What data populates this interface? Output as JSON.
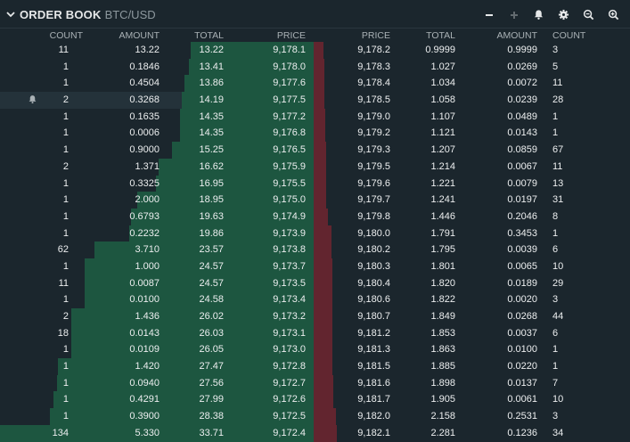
{
  "header": {
    "title": "ORDER BOOK",
    "pair": "BTC/USD",
    "icons": [
      "minus-icon",
      "plus-icon",
      "bell-icon",
      "gear-icon",
      "zoom-out-icon",
      "zoom-in-icon"
    ]
  },
  "columns": {
    "bids": [
      "COUNT",
      "AMOUNT",
      "TOTAL",
      "PRICE"
    ],
    "asks": [
      "PRICE",
      "TOTAL",
      "AMOUNT",
      "COUNT"
    ]
  },
  "colors": {
    "bid_bar": "#1d5640",
    "ask_bar": "#62252f",
    "background": "#1b262d"
  },
  "bid_max_total": 33.71,
  "ask_max_total": 2.281,
  "bids": [
    {
      "count": "11",
      "amount": "13.22",
      "total": "13.22",
      "price": "9,178.1"
    },
    {
      "count": "1",
      "amount": "0.1846",
      "total": "13.41",
      "price": "9,178.0"
    },
    {
      "count": "1",
      "amount": "0.4504",
      "total": "13.86",
      "price": "9,177.6"
    },
    {
      "count": "2",
      "amount": "0.3268",
      "total": "14.19",
      "price": "9,177.5",
      "alert": true
    },
    {
      "count": "1",
      "amount": "0.1635",
      "total": "14.35",
      "price": "9,177.2"
    },
    {
      "count": "1",
      "amount": "0.0006",
      "total": "14.35",
      "price": "9,176.8"
    },
    {
      "count": "1",
      "amount": "0.9000",
      "total": "15.25",
      "price": "9,176.5"
    },
    {
      "count": "2",
      "amount": "1.371",
      "total": "16.62",
      "price": "9,175.9"
    },
    {
      "count": "1",
      "amount": "0.3325",
      "total": "16.95",
      "price": "9,175.5"
    },
    {
      "count": "1",
      "amount": "2.000",
      "total": "18.95",
      "price": "9,175.0"
    },
    {
      "count": "1",
      "amount": "0.6793",
      "total": "19.63",
      "price": "9,174.9"
    },
    {
      "count": "1",
      "amount": "0.2232",
      "total": "19.86",
      "price": "9,173.9"
    },
    {
      "count": "62",
      "amount": "3.710",
      "total": "23.57",
      "price": "9,173.8"
    },
    {
      "count": "1",
      "amount": "1.000",
      "total": "24.57",
      "price": "9,173.7"
    },
    {
      "count": "11",
      "amount": "0.0087",
      "total": "24.57",
      "price": "9,173.5"
    },
    {
      "count": "1",
      "amount": "0.0100",
      "total": "24.58",
      "price": "9,173.4"
    },
    {
      "count": "2",
      "amount": "1.436",
      "total": "26.02",
      "price": "9,173.2"
    },
    {
      "count": "18",
      "amount": "0.0143",
      "total": "26.03",
      "price": "9,173.1"
    },
    {
      "count": "1",
      "amount": "0.0109",
      "total": "26.05",
      "price": "9,173.0"
    },
    {
      "count": "1",
      "amount": "1.420",
      "total": "27.47",
      "price": "9,172.8"
    },
    {
      "count": "1",
      "amount": "0.0940",
      "total": "27.56",
      "price": "9,172.7"
    },
    {
      "count": "1",
      "amount": "0.4291",
      "total": "27.99",
      "price": "9,172.6"
    },
    {
      "count": "1",
      "amount": "0.3900",
      "total": "28.38",
      "price": "9,172.5"
    },
    {
      "count": "134",
      "amount": "5.330",
      "total": "33.71",
      "price": "9,172.4"
    }
  ],
  "asks": [
    {
      "price": "9,178.2",
      "total": "0.9999",
      "amount": "0.9999",
      "count": "3"
    },
    {
      "price": "9,178.3",
      "total": "1.027",
      "amount": "0.0269",
      "count": "5"
    },
    {
      "price": "9,178.4",
      "total": "1.034",
      "amount": "0.0072",
      "count": "11"
    },
    {
      "price": "9,178.5",
      "total": "1.058",
      "amount": "0.0239",
      "count": "28"
    },
    {
      "price": "9,179.0",
      "total": "1.107",
      "amount": "0.0489",
      "count": "1"
    },
    {
      "price": "9,179.2",
      "total": "1.121",
      "amount": "0.0143",
      "count": "1"
    },
    {
      "price": "9,179.3",
      "total": "1.207",
      "amount": "0.0859",
      "count": "67"
    },
    {
      "price": "9,179.5",
      "total": "1.214",
      "amount": "0.0067",
      "count": "11"
    },
    {
      "price": "9,179.6",
      "total": "1.221",
      "amount": "0.0079",
      "count": "13"
    },
    {
      "price": "9,179.7",
      "total": "1.241",
      "amount": "0.0197",
      "count": "31"
    },
    {
      "price": "9,179.8",
      "total": "1.446",
      "amount": "0.2046",
      "count": "8"
    },
    {
      "price": "9,180.0",
      "total": "1.791",
      "amount": "0.3453",
      "count": "1"
    },
    {
      "price": "9,180.2",
      "total": "1.795",
      "amount": "0.0039",
      "count": "6"
    },
    {
      "price": "9,180.3",
      "total": "1.801",
      "amount": "0.0065",
      "count": "10"
    },
    {
      "price": "9,180.4",
      "total": "1.820",
      "amount": "0.0189",
      "count": "29"
    },
    {
      "price": "9,180.6",
      "total": "1.822",
      "amount": "0.0020",
      "count": "3"
    },
    {
      "price": "9,180.7",
      "total": "1.849",
      "amount": "0.0268",
      "count": "44"
    },
    {
      "price": "9,181.2",
      "total": "1.853",
      "amount": "0.0037",
      "count": "6"
    },
    {
      "price": "9,181.3",
      "total": "1.863",
      "amount": "0.0100",
      "count": "1"
    },
    {
      "price": "9,181.5",
      "total": "1.885",
      "amount": "0.0220",
      "count": "1"
    },
    {
      "price": "9,181.6",
      "total": "1.898",
      "amount": "0.0137",
      "count": "7"
    },
    {
      "price": "9,181.7",
      "total": "1.905",
      "amount": "0.0061",
      "count": "10"
    },
    {
      "price": "9,182.0",
      "total": "2.158",
      "amount": "0.2531",
      "count": "3"
    },
    {
      "price": "9,182.1",
      "total": "2.281",
      "amount": "0.1236",
      "count": "34"
    }
  ]
}
